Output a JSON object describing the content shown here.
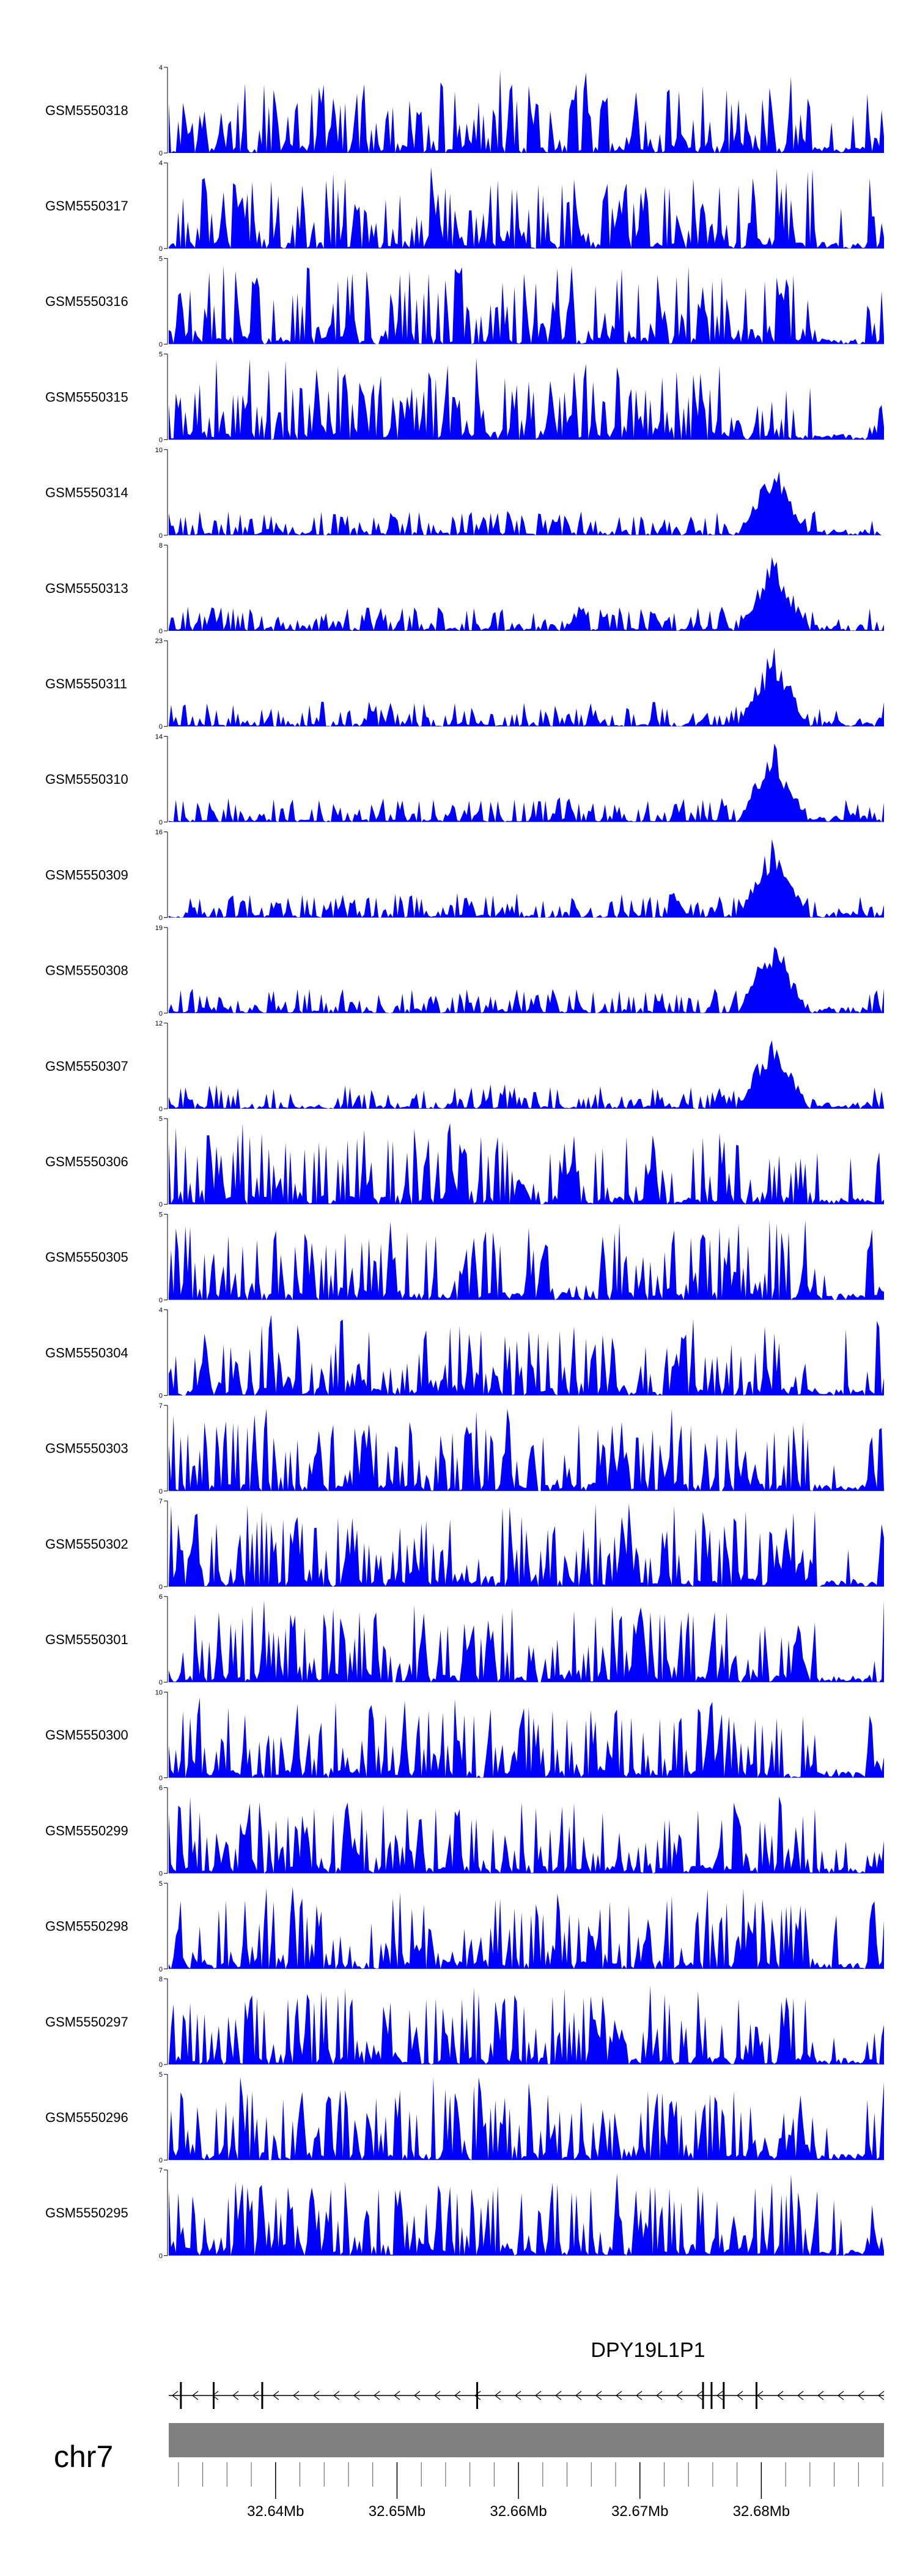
{
  "colors": {
    "signal": "#0000ff",
    "gene": "#000000",
    "ideogram": "#808080",
    "axis": "#000000"
  },
  "chart_data": {
    "type": "area",
    "region": {
      "chrom": "chr7",
      "start": 32.6312,
      "end": 32.6901,
      "unit": "Mb"
    },
    "title": "",
    "series": [
      {
        "name": "GSM5550318",
        "ylim": [
          0,
          4
        ]
      },
      {
        "name": "GSM5550317",
        "ylim": [
          0,
          4
        ]
      },
      {
        "name": "GSM5550316",
        "ylim": [
          0,
          5
        ]
      },
      {
        "name": "GSM5550315",
        "ylim": [
          0,
          5
        ]
      },
      {
        "name": "GSM5550314",
        "ylim": [
          0,
          10
        ]
      },
      {
        "name": "GSM5550313",
        "ylim": [
          0,
          8
        ]
      },
      {
        "name": "GSM5550311",
        "ylim": [
          0,
          23
        ]
      },
      {
        "name": "GSM5550310",
        "ylim": [
          0,
          14
        ]
      },
      {
        "name": "GSM5550309",
        "ylim": [
          0,
          16
        ]
      },
      {
        "name": "GSM5550308",
        "ylim": [
          0,
          19
        ]
      },
      {
        "name": "GSM5550307",
        "ylim": [
          0,
          12
        ]
      },
      {
        "name": "GSM5550306",
        "ylim": [
          0,
          5
        ]
      },
      {
        "name": "GSM5550305",
        "ylim": [
          0,
          5
        ]
      },
      {
        "name": "GSM5550304",
        "ylim": [
          0,
          4
        ]
      },
      {
        "name": "GSM5550303",
        "ylim": [
          0,
          7
        ]
      },
      {
        "name": "GSM5550302",
        "ylim": [
          0,
          7
        ]
      },
      {
        "name": "GSM5550301",
        "ylim": [
          0,
          6
        ]
      },
      {
        "name": "GSM5550300",
        "ylim": [
          0,
          10
        ]
      },
      {
        "name": "GSM5550299",
        "ylim": [
          0,
          6
        ]
      },
      {
        "name": "GSM5550298",
        "ylim": [
          0,
          5
        ]
      },
      {
        "name": "GSM5550297",
        "ylim": [
          0,
          8
        ]
      },
      {
        "name": "GSM5550296",
        "ylim": [
          0,
          5
        ]
      },
      {
        "name": "GSM5550295",
        "ylim": [
          0,
          7
        ]
      }
    ],
    "gene": {
      "name": "DPY19L1P1",
      "start": 32.6312,
      "end": 32.6901,
      "strand": "-",
      "exons": [
        32.6322,
        32.6349,
        32.6389,
        32.6566,
        32.6752,
        32.6759,
        32.6769,
        32.6796
      ]
    },
    "ideogram": {
      "chrom_label": "chr7"
    },
    "x_axis": {
      "ticks": [
        32.64,
        32.65,
        32.66,
        32.67,
        32.68
      ],
      "tick_labels": [
        "32.64Mb",
        "32.65Mb",
        "32.66Mb",
        "32.67Mb",
        "32.68Mb"
      ],
      "minor_step": 0.002
    }
  }
}
